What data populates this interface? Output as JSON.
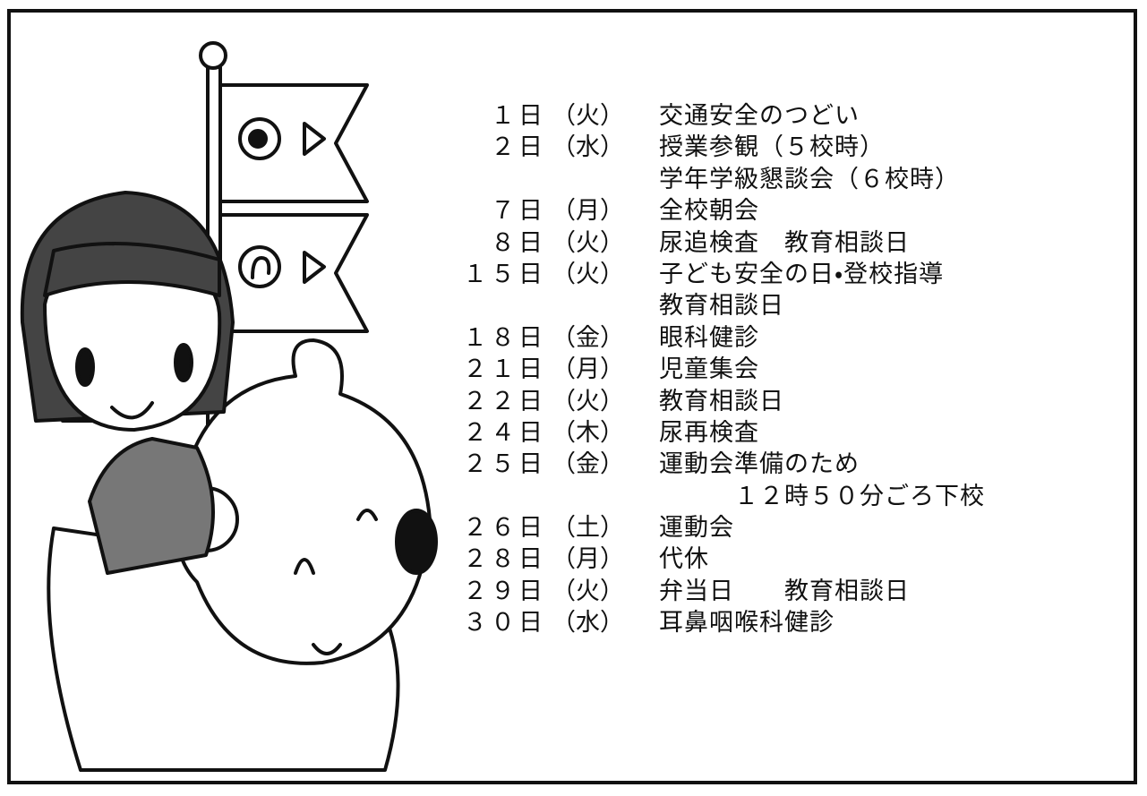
{
  "events": [
    {
      "date": "１日",
      "weekday": "（火）",
      "lines": [
        "交通安全のつどい"
      ]
    },
    {
      "date": "２日",
      "weekday": "（水）",
      "lines": [
        "授業参観（５校時）",
        "学年学級懇談会（６校時）"
      ]
    },
    {
      "date": "７日",
      "weekday": "（月）",
      "lines": [
        "全校朝会"
      ]
    },
    {
      "date": "８日",
      "weekday": "（火）",
      "lines": [
        "尿追検査　教育相談日"
      ]
    },
    {
      "date": "１５日",
      "weekday": "（火）",
      "lines": [
        "子ども安全の日・登校指導",
        "教育相談日"
      ]
    },
    {
      "date": "１８日",
      "weekday": "（金）",
      "lines": [
        "眼科健診"
      ]
    },
    {
      "date": "２１日",
      "weekday": "（月）",
      "lines": [
        "児童集会"
      ]
    },
    {
      "date": "２２日",
      "weekday": "（火）",
      "lines": [
        "教育相談日"
      ]
    },
    {
      "date": "２４日",
      "weekday": "（木）",
      "lines": [
        "尿再検査"
      ]
    },
    {
      "date": "２５日",
      "weekday": "（金）",
      "lines": [
        "運動会準備のため",
        "　　　１２時５０分ごろ下校"
      ]
    },
    {
      "date": "２６日",
      "weekday": "（土）",
      "lines": [
        "運動会"
      ]
    },
    {
      "date": "２８日",
      "weekday": "（月）",
      "lines": [
        "代休"
      ]
    },
    {
      "date": "２９日",
      "weekday": "（火）",
      "lines": [
        "弁当日　　教育相談日"
      ]
    },
    {
      "date": "３０日",
      "weekday": "（水）",
      "lines": [
        "耳鼻咽喉科健診"
      ]
    }
  ]
}
